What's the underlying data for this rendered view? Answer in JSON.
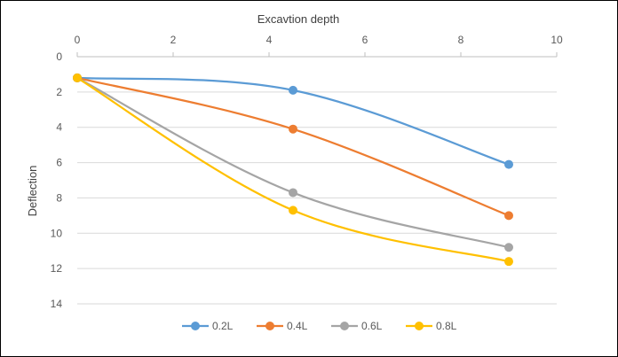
{
  "chart_data": {
    "type": "line",
    "xlabel": "Excavtion depth",
    "ylabel": "Deflection",
    "x_axis_position": "top",
    "y_axis_reversed": true,
    "xlim": [
      0,
      10
    ],
    "ylim": [
      0,
      14
    ],
    "x_ticks": [
      "0",
      "2",
      "4",
      "6",
      "8",
      "10"
    ],
    "y_ticks": [
      "0",
      "2",
      "4",
      "6",
      "8",
      "10",
      "12",
      "14"
    ],
    "grid": "horizontal",
    "legend_position": "bottom",
    "x": [
      0,
      4.5,
      9
    ],
    "series": [
      {
        "name": "0.2L",
        "color": "#5b9bd5",
        "values": [
          1.2,
          1.9,
          6.1
        ]
      },
      {
        "name": "0.4L",
        "color": "#ed7d31",
        "values": [
          1.2,
          4.1,
          9.0
        ]
      },
      {
        "name": "0.6L",
        "color": "#a5a5a5",
        "values": [
          1.2,
          7.7,
          10.8
        ]
      },
      {
        "name": "0.8L",
        "color": "#ffc000",
        "values": [
          1.2,
          8.7,
          11.6
        ]
      }
    ]
  }
}
